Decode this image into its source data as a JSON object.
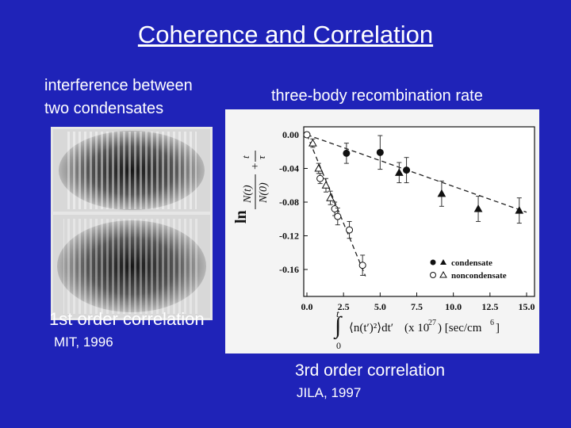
{
  "slide": {
    "title": "Coherence and Correlation",
    "left_heading_line1": "interference between",
    "left_heading_line2": "two condensates",
    "right_heading": "three-body recombination rate",
    "caption_left": "1st order correlation",
    "caption_left_source": "MIT, 1996",
    "caption_right": "3rd order correlation",
    "caption_right_source": "JILA, 1997"
  },
  "chart_data": {
    "type": "scatter",
    "xlabel_units": "(x 10",
    "xlabel_exp": "27",
    "xlabel_units2": ") [sec/cm",
    "xlabel_exp2": "6",
    "xlabel_close": "]",
    "xlim": [
      0,
      15
    ],
    "ylim": [
      -0.18,
      0.01
    ],
    "x_ticks": [
      0.0,
      2.5,
      5.0,
      7.5,
      10.0,
      12.5,
      15.0
    ],
    "x_tick_labels": [
      "0.0",
      "2.5",
      "5.0",
      "7.5",
      "10.0",
      "12.5",
      "15.0"
    ],
    "y_ticks": [
      0.0,
      -0.04,
      -0.08,
      -0.12,
      -0.16
    ],
    "y_tick_labels": [
      "0.00",
      "-0.04",
      "-0.08",
      "-0.12",
      "-0.16"
    ],
    "legend": [
      "condensate",
      "noncondensate"
    ],
    "legend_position": "bottom-right",
    "series": [
      {
        "name": "condensate",
        "marker": "filled",
        "fit": [
          [
            0,
            0
          ],
          [
            15,
            -0.092
          ]
        ],
        "points": [
          {
            "x": 2.7,
            "y": -0.022,
            "err": 0.012,
            "shape": "circle"
          },
          {
            "x": 5.0,
            "y": -0.021,
            "err": 0.02,
            "shape": "circle"
          },
          {
            "x": 6.3,
            "y": -0.045,
            "err": 0.012,
            "shape": "triangle"
          },
          {
            "x": 6.8,
            "y": -0.042,
            "err": 0.015,
            "shape": "circle"
          },
          {
            "x": 9.2,
            "y": -0.07,
            "err": 0.015,
            "shape": "triangle"
          },
          {
            "x": 11.7,
            "y": -0.088,
            "err": 0.015,
            "shape": "triangle"
          },
          {
            "x": 14.5,
            "y": -0.09,
            "err": 0.015,
            "shape": "triangle"
          }
        ]
      },
      {
        "name": "noncondensate",
        "marker": "open",
        "fit": [
          [
            0,
            0
          ],
          [
            4.0,
            -0.168
          ]
        ],
        "points": [
          {
            "x": 0.0,
            "y": 0.0,
            "err": 0.003,
            "shape": "circle"
          },
          {
            "x": 0.4,
            "y": -0.01,
            "err": 0.005,
            "shape": "triangle"
          },
          {
            "x": 0.8,
            "y": -0.04,
            "err": 0.006,
            "shape": "triangle"
          },
          {
            "x": 0.9,
            "y": -0.052,
            "err": 0.006,
            "shape": "circle"
          },
          {
            "x": 1.3,
            "y": -0.06,
            "err": 0.008,
            "shape": "triangle"
          },
          {
            "x": 1.6,
            "y": -0.075,
            "err": 0.008,
            "shape": "triangle"
          },
          {
            "x": 1.9,
            "y": -0.088,
            "err": 0.008,
            "shape": "circle"
          },
          {
            "x": 2.1,
            "y": -0.097,
            "err": 0.01,
            "shape": "circle"
          },
          {
            "x": 2.9,
            "y": -0.113,
            "err": 0.01,
            "shape": "circle"
          },
          {
            "x": 3.8,
            "y": -0.155,
            "err": 0.012,
            "shape": "circle"
          }
        ]
      }
    ]
  }
}
